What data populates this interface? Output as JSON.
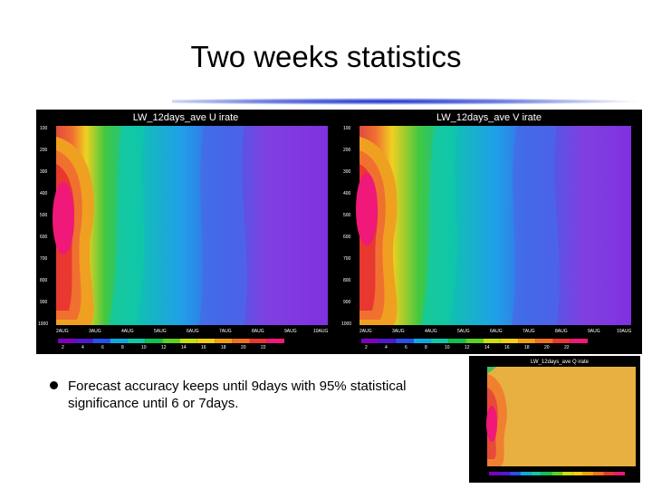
{
  "slide": {
    "title": "Two weeks statistics",
    "bullet": "Forecast accuracy keeps until 9days with 95% statistical significance until 6 or 7days."
  },
  "panels": {
    "left": {
      "title": "LW_12days_ave  U  irate",
      "y_ticks": [
        "100",
        "200",
        "300",
        "400",
        "500",
        "600",
        "700",
        "800",
        "900",
        "1000"
      ],
      "x_ticks": [
        "2AUG",
        "3AUG",
        "4AUG",
        "5AUG",
        "6AUG",
        "7AUG",
        "8AUG",
        "9AUG",
        "10AUG"
      ],
      "scale_labels": [
        "2",
        "4",
        "6",
        "8",
        "10",
        "12",
        "14",
        "16",
        "18",
        "20",
        "22"
      ]
    },
    "right": {
      "title": "LW_12days_ave  V  irate",
      "y_ticks": [
        "100",
        "200",
        "300",
        "400",
        "500",
        "600",
        "700",
        "800",
        "900",
        "1000"
      ],
      "x_ticks": [
        "2AUG",
        "3AUG",
        "4AUG",
        "5AUG",
        "6AUG",
        "7AUG",
        "8AUG",
        "9AUG",
        "10AUG"
      ],
      "scale_labels": [
        "2",
        "4",
        "6",
        "8",
        "10",
        "12",
        "14",
        "16",
        "18",
        "20",
        "22"
      ]
    },
    "inset": {
      "title": "LW_12days_ave  Q  irate"
    }
  },
  "colors": {
    "scale": [
      "#8000c0",
      "#5018d0",
      "#2850e8",
      "#10a8e0",
      "#10c8a8",
      "#10c050",
      "#60d020",
      "#c8e010",
      "#f0d010",
      "#f0a010",
      "#f07020",
      "#e83830",
      "#f01878"
    ]
  }
}
